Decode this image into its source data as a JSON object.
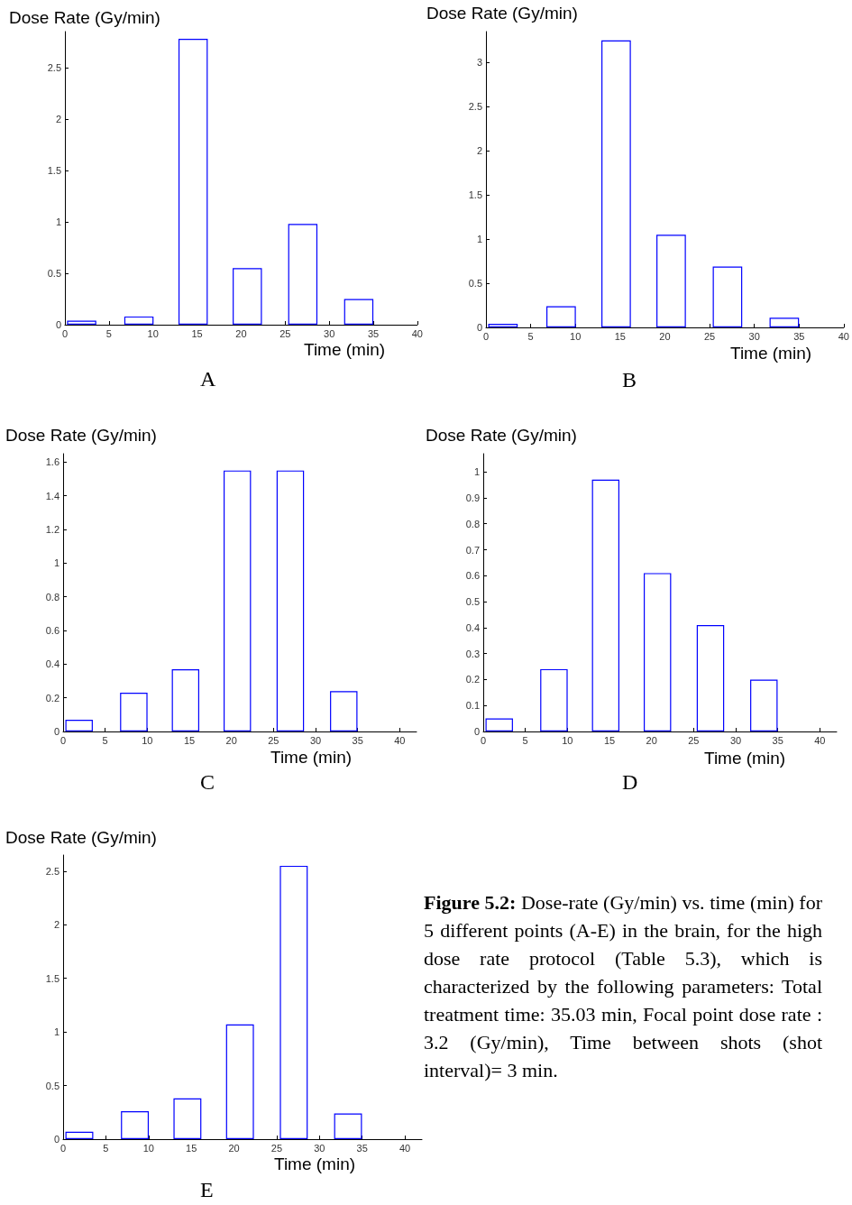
{
  "chart_data": [
    {
      "type": "bar",
      "ylabel": "Dose Rate (Gy/min)",
      "xlabel": "Time (min)",
      "annotations": [
        "A"
      ],
      "x": [
        1.9,
        8.4,
        14.55,
        20.7,
        27,
        33.35
      ],
      "series": [
        {
          "color": "#0000ff",
          "values": [
            0.04,
            0.08,
            2.78,
            0.55,
            0.98,
            0.25
          ]
        }
      ],
      "xlim": [
        0,
        40
      ],
      "xticks": [
        0,
        5,
        10,
        15,
        20,
        25,
        30,
        35,
        40
      ],
      "ylim": [
        0,
        2.85
      ],
      "yticks": [
        0,
        0.5,
        1,
        1.5,
        2,
        2.5
      ],
      "grid": false
    },
    {
      "type": "bar",
      "ylabel": "Dose Rate (Gy/min)",
      "xlabel": "Time (min)",
      "annotations": [
        "B"
      ],
      "x": [
        1.9,
        8.4,
        14.55,
        20.7,
        27,
        33.35
      ],
      "series": [
        {
          "color": "#0000ff",
          "values": [
            0.04,
            0.24,
            3.25,
            1.05,
            0.69,
            0.11
          ]
        }
      ],
      "xlim": [
        0,
        40
      ],
      "xticks": [
        0,
        5,
        10,
        15,
        20,
        25,
        30,
        35,
        40
      ],
      "ylim": [
        0,
        3.35
      ],
      "yticks": [
        0,
        0.5,
        1,
        1.5,
        2,
        2.5,
        3
      ],
      "grid": false
    },
    {
      "type": "bar",
      "ylabel": "Dose Rate (Gy/min)",
      "xlabel": "Time (min)",
      "annotations": [
        "C"
      ],
      "x": [
        1.9,
        8.4,
        14.55,
        20.7,
        27,
        33.35
      ],
      "series": [
        {
          "color": "#0000ff",
          "values": [
            0.07,
            0.23,
            0.37,
            1.55,
            1.55,
            0.24
          ]
        }
      ],
      "xlim": [
        0,
        42
      ],
      "xticks": [
        0,
        5,
        10,
        15,
        20,
        25,
        30,
        35,
        40
      ],
      "ylim": [
        0,
        1.65
      ],
      "yticks": [
        0,
        0.2,
        0.4,
        0.6,
        0.8,
        1,
        1.2,
        1.4,
        1.6
      ],
      "grid": false
    },
    {
      "type": "bar",
      "ylabel": "Dose Rate (Gy/min)",
      "xlabel": "Time (min)",
      "annotations": [
        "D"
      ],
      "x": [
        1.9,
        8.4,
        14.55,
        20.7,
        27,
        33.35
      ],
      "series": [
        {
          "color": "#0000ff",
          "values": [
            0.05,
            0.24,
            0.97,
            0.61,
            0.41,
            0.2
          ]
        }
      ],
      "xlim": [
        0,
        42
      ],
      "xticks": [
        0,
        5,
        10,
        15,
        20,
        25,
        30,
        35,
        40
      ],
      "ylim": [
        0,
        1.07
      ],
      "yticks": [
        0,
        0.1,
        0.2,
        0.3,
        0.4,
        0.5,
        0.6,
        0.7,
        0.8,
        0.9,
        1
      ],
      "grid": false
    },
    {
      "type": "bar",
      "ylabel": "Dose Rate (Gy/min)",
      "xlabel": "Time (min)",
      "annotations": [
        "E"
      ],
      "x": [
        1.9,
        8.4,
        14.55,
        20.7,
        27,
        33.35
      ],
      "series": [
        {
          "color": "#0000ff",
          "values": [
            0.07,
            0.26,
            0.38,
            1.07,
            2.55,
            0.24
          ]
        }
      ],
      "xlim": [
        0,
        42
      ],
      "xticks": [
        0,
        5,
        10,
        15,
        20,
        25,
        30,
        35,
        40
      ],
      "ylim": [
        0,
        2.65
      ],
      "yticks": [
        0,
        0.5,
        1,
        1.5,
        2,
        2.5
      ],
      "grid": false
    },
    {
      "type": "other",
      "title": "Figure 5.2:",
      "annotations": [
        "Dose-rate (Gy/min) vs. time (min) for 5 different points (A-E) in the brain, for the high dose rate protocol (Table 5.3), which is characterized by the following parameters: Total treatment time: 35.03 min, Focal point dose rate : 3.2 (Gy/min), Time between shots (shot interval)= 3 min."
      ]
    }
  ]
}
